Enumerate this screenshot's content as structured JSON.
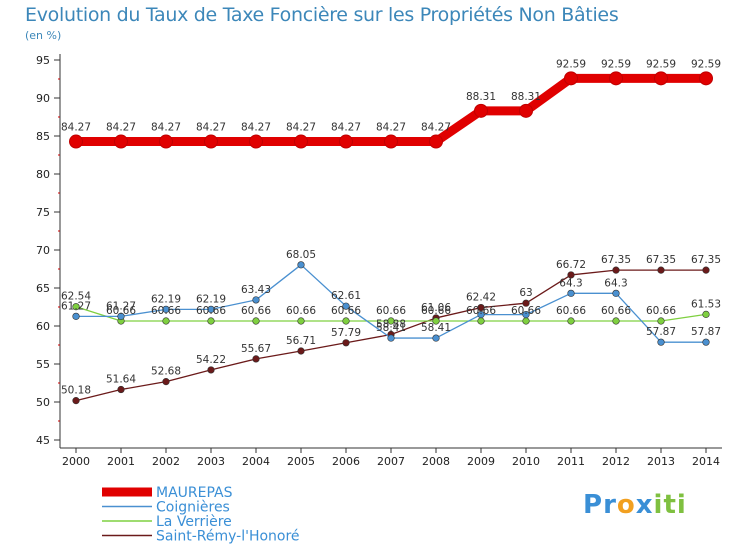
{
  "chart_data": {
    "type": "line",
    "title": "Evolution du Taux de Taxe Foncière sur les Propriétés Non Bâties",
    "unit_label": "(en %)",
    "x": [
      "2000",
      "2001",
      "2002",
      "2003",
      "2004",
      "2005",
      "2006",
      "2007",
      "2008",
      "2009",
      "2010",
      "2011",
      "2012",
      "2013",
      "2014"
    ],
    "ylim": [
      45,
      95
    ],
    "yticks": [
      45,
      50,
      55,
      60,
      65,
      70,
      75,
      80,
      85,
      90,
      95
    ],
    "grid": false,
    "legend_position": "bottom-left",
    "series": [
      {
        "name": "MAUREPAS",
        "color": "#e00000",
        "values": [
          84.27,
          84.27,
          84.27,
          84.27,
          84.27,
          84.27,
          84.27,
          84.27,
          84.27,
          88.31,
          88.31,
          92.59,
          92.59,
          92.59,
          92.59
        ],
        "labels": [
          "84.27",
          "84.27",
          "84.27",
          "84.27",
          "84.27",
          "84.27",
          "84.27",
          "84.27",
          "84.27",
          "88.31",
          "88.31",
          "92.59",
          "92.59",
          "92.59",
          "92.59"
        ]
      },
      {
        "name": "Coignières",
        "color": "#4a90d0",
        "values": [
          61.27,
          61.27,
          62.19,
          62.19,
          63.43,
          68.05,
          62.61,
          58.41,
          58.41,
          61.5,
          61.5,
          64.3,
          64.3,
          57.87,
          57.87
        ],
        "labels": [
          "61.27",
          "61.27",
          "62.19",
          "62.19",
          "63.43",
          "68.05",
          "62.61",
          "58.41",
          "58.41",
          "",
          "",
          "64.3",
          "64.3",
          "57.87",
          "57.87"
        ]
      },
      {
        "name": "La Verrière",
        "color": "#7fd040",
        "values": [
          62.54,
          60.66,
          60.66,
          60.66,
          60.66,
          60.66,
          60.66,
          60.66,
          60.66,
          60.66,
          60.66,
          60.66,
          60.66,
          60.66,
          61.53
        ],
        "labels": [
          "62.54",
          "60.66",
          "60.66",
          "60.66",
          "60.66",
          "60.66",
          "60.66",
          "60.66",
          "60.66",
          "60.66",
          "60.66",
          "60.66",
          "60.66",
          "60.66",
          "61.53"
        ]
      },
      {
        "name": "Saint-Rémy-l'Honoré",
        "color": "#6b1a1a",
        "values": [
          50.18,
          51.64,
          52.68,
          54.22,
          55.67,
          56.71,
          57.79,
          58.88,
          61.06,
          62.42,
          63,
          66.72,
          67.35,
          67.35,
          67.35
        ],
        "labels": [
          "50.18",
          "51.64",
          "52.68",
          "54.22",
          "55.67",
          "56.71",
          "57.79",
          "58.88",
          "61.06",
          "62.42",
          "63",
          "66.72",
          "67.35",
          "67.35",
          "67.35"
        ]
      }
    ]
  },
  "logo": {
    "letters": [
      "P",
      "r",
      "o",
      "x",
      "i",
      "t",
      "i"
    ],
    "colors": [
      "#3a8fd6",
      "#3a8fd6",
      "#f2a020",
      "#3a8fd6",
      "#7fc040",
      "#7fc040",
      "#7fc040"
    ]
  }
}
